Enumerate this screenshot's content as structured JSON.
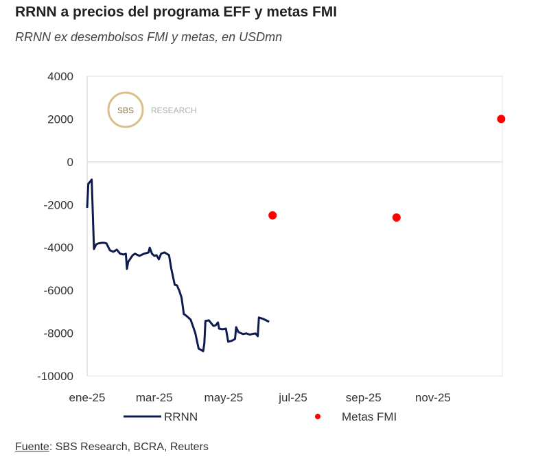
{
  "chart_data": {
    "type": "line",
    "title": "RRNN a precios del programa EFF y metas FMI",
    "subtitle": "RRNN ex desembolsos FMI y metas, en USDmn",
    "xlabel": "",
    "ylabel": "",
    "ylim": [
      -10000,
      4000
    ],
    "yticks": [
      4000,
      2000,
      0,
      -2000,
      -4000,
      -6000,
      -8000,
      -10000
    ],
    "x_unit": "day of 2025",
    "xlim": [
      0,
      365
    ],
    "xticks": [
      {
        "label": "ene-25",
        "day": 0
      },
      {
        "label": "mar-25",
        "day": 59
      },
      {
        "label": "may-25",
        "day": 120
      },
      {
        "label": "jul-25",
        "day": 181
      },
      {
        "label": "sep-25",
        "day": 243
      },
      {
        "label": "nov-25",
        "day": 304
      }
    ],
    "grid": false,
    "legend_position": "bottom",
    "series": [
      {
        "name": "RRNN",
        "type": "line",
        "color": "#0d1b4f",
        "x": [
          0,
          1,
          3,
          4,
          6,
          8,
          10,
          13,
          15,
          17,
          20,
          23,
          26,
          29,
          32,
          34,
          35,
          36,
          40,
          42,
          46,
          50,
          54,
          55,
          57,
          59,
          61,
          63,
          65,
          68,
          72,
          74,
          77,
          79,
          81,
          83,
          85,
          87,
          91,
          95,
          98,
          102,
          103,
          104,
          107,
          109,
          111,
          113,
          115,
          116,
          119,
          122,
          124,
          127,
          130,
          131,
          133,
          137,
          140,
          143,
          145,
          148,
          150,
          151,
          155,
          160
        ],
        "y": [
          -2150,
          -1030,
          -900,
          -830,
          -4070,
          -3850,
          -3810,
          -3780,
          -3780,
          -3810,
          -4130,
          -4200,
          -4100,
          -4290,
          -4330,
          -4290,
          -5000,
          -4680,
          -4360,
          -4290,
          -4390,
          -4290,
          -4230,
          -4010,
          -4290,
          -4390,
          -4360,
          -4550,
          -4290,
          -4230,
          -4360,
          -5000,
          -5740,
          -5770,
          -6020,
          -6340,
          -7110,
          -7180,
          -7370,
          -7980,
          -8720,
          -8840,
          -8490,
          -7430,
          -7400,
          -7530,
          -7660,
          -7630,
          -7500,
          -7790,
          -7820,
          -7790,
          -8400,
          -8360,
          -8270,
          -7720,
          -7950,
          -8040,
          -8010,
          -8070,
          -8040,
          -8010,
          -8140,
          -7270,
          -7340,
          -7470
        ]
      },
      {
        "name": "Metas FMI",
        "type": "scatter",
        "color": "#ff0000",
        "x": [
          163,
          272,
          364
        ],
        "y": [
          -2500,
          -2600,
          2000
        ]
      }
    ]
  },
  "logo": {
    "mark": "SBS",
    "text": "RESEARCH"
  },
  "source": {
    "label": "Fuente",
    "text": ": SBS Research, BCRA, Reuters"
  }
}
